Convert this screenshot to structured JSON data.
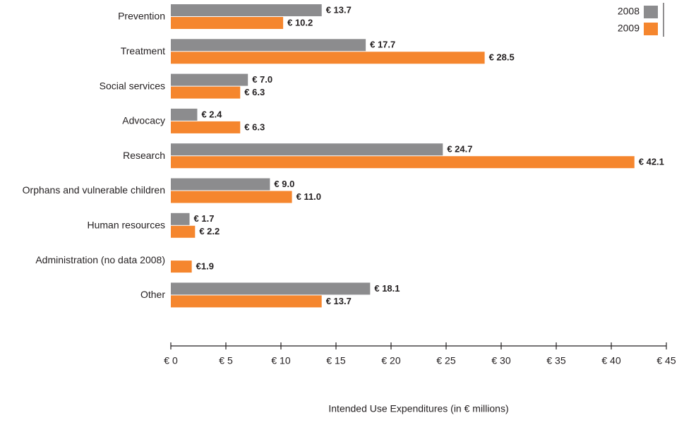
{
  "chart_data": {
    "type": "hbar",
    "x_label": "Intended Use Expenditures (in € millions)",
    "categories": [
      "Prevention",
      "Treatment",
      "Social services",
      "Advocacy",
      "Research",
      "Orphans and vulnerable children",
      "Human resources",
      "Administration (no data 2008)",
      "Other"
    ],
    "series": [
      {
        "name": "2008",
        "color": "#8c8c8e",
        "values": [
          13.7,
          17.7,
          7.0,
          2.4,
          24.7,
          9.0,
          1.7,
          null,
          18.1
        ],
        "value_labels": [
          "€ 13.7",
          "€ 17.7",
          "€ 7.0",
          "€ 2.4",
          "€ 24.7",
          "€ 9.0",
          "€ 1.7",
          null,
          "€ 18.1"
        ]
      },
      {
        "name": "2009",
        "color": "#f5862e",
        "values": [
          10.2,
          28.5,
          6.3,
          6.3,
          42.1,
          11.0,
          2.2,
          1.9,
          13.7
        ],
        "value_labels": [
          "€ 10.2",
          "€ 28.5",
          "€ 6.3",
          "€ 6.3",
          "€ 42.1",
          "€ 11.0",
          "€ 2.2",
          "€1.9",
          "€ 13.7"
        ]
      }
    ],
    "xlim": [
      0,
      45
    ],
    "xticks": [
      {
        "value": 0,
        "label": "€ 0"
      },
      {
        "value": 5,
        "label": "€ 5"
      },
      {
        "value": 10,
        "label": "€ 10"
      },
      {
        "value": 15,
        "label": "€ 15"
      },
      {
        "value": 20,
        "label": "€ 20"
      },
      {
        "value": 25,
        "label": "€ 25"
      },
      {
        "value": 30,
        "label": "€ 30"
      },
      {
        "value": 35,
        "label": "€ 35"
      },
      {
        "value": 40,
        "label": "€ 40"
      },
      {
        "value": 45,
        "label": "€ 45"
      }
    ],
    "legend": "top-right"
  }
}
